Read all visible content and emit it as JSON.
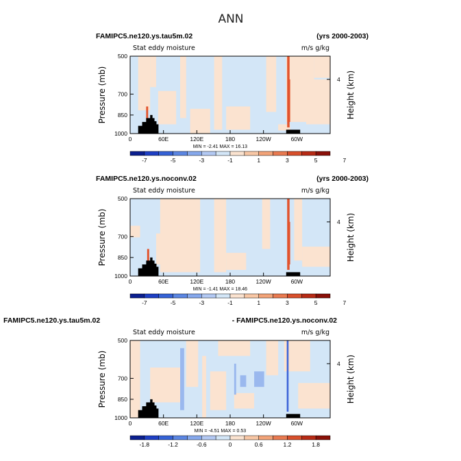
{
  "title": "ANN",
  "chart_data": [
    {
      "type": "heatmap",
      "left_title": "FAMIPC5.ne120.ys.tau5m.02",
      "right_title": "(yrs 2000-2003)",
      "subtitle": "Stat eddy moisture",
      "units": "m/s g/kg",
      "ylabel": "Pressure (mb)",
      "ylabel_right": "Height (km)",
      "y_ticks": [
        "500",
        "700",
        "850",
        "1000"
      ],
      "y_right_ticks": [
        "4"
      ],
      "x_ticks": [
        "0",
        "60E",
        "120E",
        "180",
        "120W",
        "60W"
      ],
      "min_max_text": "MIN =   -2.41   MAX =   16.13",
      "min": -2.41,
      "max": 16.13,
      "colorbar_labels": [
        "-7",
        "-5",
        "-3",
        "-1",
        "1",
        "3",
        "5",
        "7"
      ]
    },
    {
      "type": "heatmap",
      "left_title": "FAMIPC5.ne120.ys.noconv.02",
      "right_title": "(yrs 2000-2003)",
      "subtitle": "Stat eddy moisture",
      "units": "m/s g/kg",
      "ylabel": "Pressure (mb)",
      "ylabel_right": "Height (km)",
      "y_ticks": [
        "500",
        "700",
        "850",
        "1000"
      ],
      "y_right_ticks": [
        "4"
      ],
      "x_ticks": [
        "0",
        "60E",
        "120E",
        "180",
        "120W",
        "60W"
      ],
      "min_max_text": "MIN =   -1.41   MAX =   18.46",
      "min": -1.41,
      "max": 18.46,
      "colorbar_labels": [
        "-7",
        "-5",
        "-3",
        "-1",
        "1",
        "3",
        "5",
        "7"
      ]
    },
    {
      "type": "heatmap",
      "left_title": "FAMIPC5.ne120.ys.tau5m.02",
      "right_title": "- FAMIPC5.ne120.ys.noconv.02",
      "subtitle": "Stat eddy moisture",
      "units": "m/s g/kg",
      "ylabel": "Pressure (mb)",
      "ylabel_right": "Height (km)",
      "y_ticks": [
        "500",
        "700",
        "850",
        "1000"
      ],
      "y_right_ticks": [
        "4"
      ],
      "x_ticks": [
        "0",
        "60E",
        "120E",
        "180",
        "120W",
        "60W"
      ],
      "min_max_text": "MIN =   -4.51   MAX =   0.53",
      "min": -4.51,
      "max": 0.53,
      "colorbar_labels": [
        "-1.8",
        "-1.2",
        "-0.6",
        "0",
        "0.6",
        "1.2",
        "1.8"
      ]
    }
  ],
  "colors": {
    "pale_blue": "#d3e6f7",
    "pale_orange": "#fbe3d0",
    "mid_blue": "#9ab8ee",
    "strong_red": "#e2532c",
    "strong_blue": "#3d64d8",
    "terrain": "#000000"
  }
}
